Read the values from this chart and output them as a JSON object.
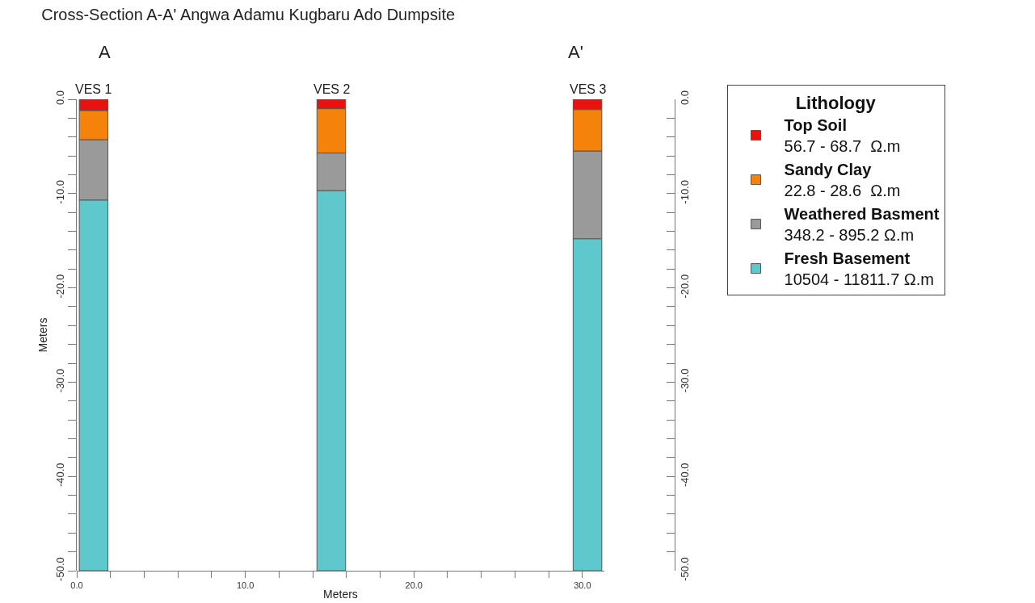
{
  "chart_data": {
    "type": "bar",
    "stacked": true,
    "title": "Cross-Section A-A' Angwa Adamu Kugbaru Ado Dumpsite",
    "xlabel": "Meters",
    "ylabel": "Meters",
    "legend_title": "Lithology",
    "legend": "right",
    "x": [
      1.0,
      15.1,
      30.3
    ],
    "series": [
      {
        "name": "Top Soil",
        "color": "#e8130f",
        "values": [
          -1.2,
          -1.0,
          -1.1
        ]
      },
      {
        "name": "Sandy Clay",
        "color": "#f5820a",
        "values": [
          -3.1,
          -4.7,
          -4.4
        ]
      },
      {
        "name": "Weathered Basment",
        "color": "#9a9a9a",
        "values": [
          -6.4,
          -4.0,
          -9.3
        ]
      },
      {
        "name": "Fresh Basement",
        "color": "#5ec8cc",
        "values": [
          -39.3,
          -40.3,
          -35.2
        ]
      }
    ],
    "annotations": [
      "56.7 - 68.7  Ω.m",
      "22.8 - 28.6  Ω.m",
      "348.2 - 895.2 Ω.m",
      "10504 - 11811.7 Ω.m",
      {
        "text": "VES 1",
        "x": 1.0,
        "y": 0
      },
      {
        "text": "VES 2",
        "x": 15.1,
        "y": 0
      },
      {
        "text": "VES 3",
        "x": 30.3,
        "y": 0
      },
      "A",
      "A'"
    ],
    "xlim": [
      0,
      31.3
    ],
    "xticks": [
      {
        "value": 0,
        "label": "0.0"
      },
      {
        "value": 2,
        "label": null
      },
      {
        "value": 4,
        "label": null
      },
      {
        "value": 6,
        "label": null
      },
      {
        "value": 8,
        "label": null
      },
      {
        "value": 10,
        "label": "10.0"
      },
      {
        "value": 12,
        "label": null
      },
      {
        "value": 14,
        "label": null
      },
      {
        "value": 16,
        "label": null
      },
      {
        "value": 18,
        "label": null
      },
      {
        "value": 20,
        "label": "20.0"
      },
      {
        "value": 22,
        "label": null
      },
      {
        "value": 24,
        "label": null
      },
      {
        "value": 26,
        "label": null
      },
      {
        "value": 28,
        "label": null
      },
      {
        "value": 30,
        "label": "30.0"
      }
    ],
    "ylim": [
      -50,
      0
    ],
    "yticks": [
      {
        "value": 0,
        "label": "0.0"
      },
      {
        "value": -2,
        "label": null
      },
      {
        "value": -4,
        "label": null
      },
      {
        "value": -6,
        "label": null
      },
      {
        "value": -8,
        "label": null
      },
      {
        "value": -10,
        "label": "-10.0"
      },
      {
        "value": -12,
        "label": null
      },
      {
        "value": -14,
        "label": null
      },
      {
        "value": -16,
        "label": null
      },
      {
        "value": -18,
        "label": null
      },
      {
        "value": -20,
        "label": "-20.0"
      },
      {
        "value": -22,
        "label": null
      },
      {
        "value": -24,
        "label": null
      },
      {
        "value": -26,
        "label": null
      },
      {
        "value": -28,
        "label": null
      },
      {
        "value": -30,
        "label": "-30.0"
      },
      {
        "value": -32,
        "label": null
      },
      {
        "value": -34,
        "label": null
      },
      {
        "value": -36,
        "label": null
      },
      {
        "value": -38,
        "label": null
      },
      {
        "value": -40,
        "label": "-40.0"
      },
      {
        "value": -42,
        "label": null
      },
      {
        "value": -44,
        "label": null
      },
      {
        "value": -46,
        "label": null
      },
      {
        "value": -48,
        "label": null
      },
      {
        "value": -50,
        "label": "-50.0"
      }
    ],
    "y2lim": [
      -50,
      0
    ],
    "y2ticks": [
      {
        "value": 0,
        "label": "0.0"
      },
      {
        "value": -2,
        "label": null
      },
      {
        "value": -4,
        "label": null
      },
      {
        "value": -6,
        "label": null
      },
      {
        "value": -8,
        "label": null
      },
      {
        "value": -10,
        "label": "-10.0"
      },
      {
        "value": -12,
        "label": null
      },
      {
        "value": -14,
        "label": null
      },
      {
        "value": -16,
        "label": null
      },
      {
        "value": -18,
        "label": null
      },
      {
        "value": -20,
        "label": "-20.0"
      },
      {
        "value": -22,
        "label": null
      },
      {
        "value": -24,
        "label": null
      },
      {
        "value": -26,
        "label": null
      },
      {
        "value": -28,
        "label": null
      },
      {
        "value": -30,
        "label": "-30.0"
      },
      {
        "value": -32,
        "label": null
      },
      {
        "value": -34,
        "label": null
      },
      {
        "value": -36,
        "label": null
      },
      {
        "value": -38,
        "label": null
      },
      {
        "value": -40,
        "label": "-40.0"
      },
      {
        "value": -42,
        "label": null
      },
      {
        "value": -44,
        "label": null
      },
      {
        "value": -46,
        "label": null
      },
      {
        "value": -48,
        "label": null
      },
      {
        "value": -50,
        "label": "-50.0"
      }
    ]
  }
}
